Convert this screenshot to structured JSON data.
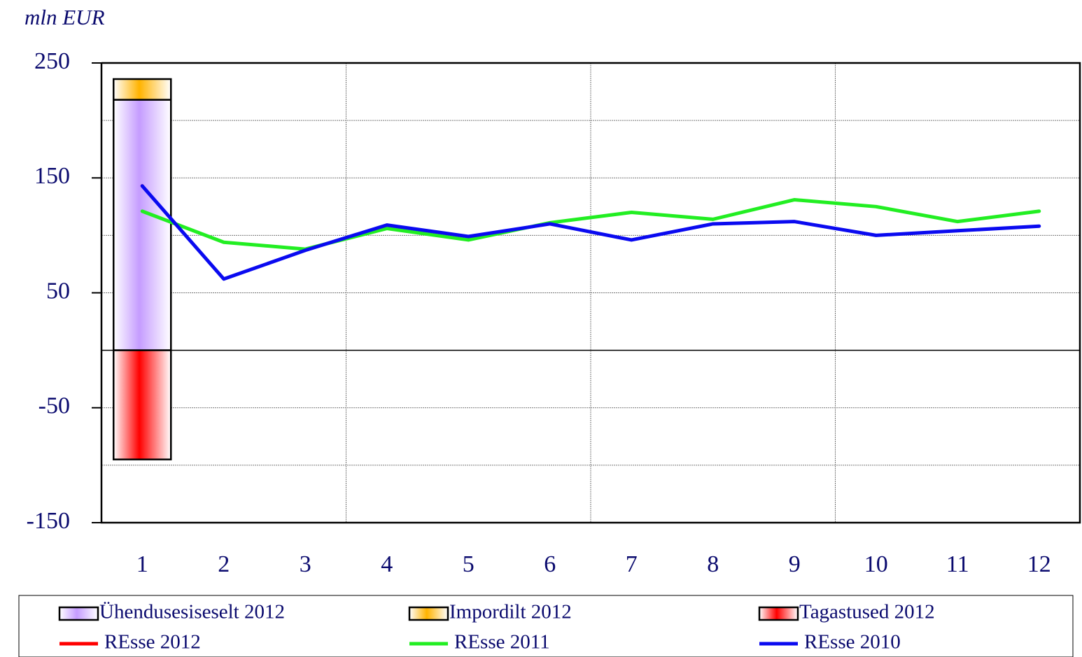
{
  "chart_data": {
    "type": "combo",
    "title": "mln EUR",
    "categories": [
      "1",
      "2",
      "3",
      "4",
      "5",
      "6",
      "7",
      "8",
      "9",
      "10",
      "11",
      "12"
    ],
    "ylim": [
      -150,
      250
    ],
    "yticks": [
      -150,
      -50,
      50,
      150,
      250
    ],
    "grid_step": 50,
    "grid": true,
    "series": [
      {
        "name": "Ühendusesiseselt 2012",
        "type": "bar",
        "color": "#c59cff",
        "values": [
          218,
          null,
          null,
          null,
          null,
          null,
          null,
          null,
          null,
          null,
          null,
          null
        ]
      },
      {
        "name": "Impordilt 2012",
        "type": "bar",
        "color": "#ffb300",
        "values": [
          18,
          null,
          null,
          null,
          null,
          null,
          null,
          null,
          null,
          null,
          null,
          null
        ]
      },
      {
        "name": "Tagastused 2012",
        "type": "bar",
        "color": "#ff0000",
        "values": [
          -95,
          null,
          null,
          null,
          null,
          null,
          null,
          null,
          null,
          null,
          null,
          null
        ]
      },
      {
        "name": "REsse 2012",
        "type": "line",
        "color": "#ff0000",
        "values": [
          143,
          null,
          null,
          null,
          null,
          null,
          null,
          null,
          null,
          null,
          null,
          null
        ]
      },
      {
        "name": "REsse 2011",
        "type": "line",
        "color": "#22ee22",
        "values": [
          121,
          94,
          88,
          106,
          96,
          111,
          120,
          114,
          131,
          125,
          112,
          121
        ]
      },
      {
        "name": "REsse 2010",
        "type": "line",
        "color": "#0a0af0",
        "values": [
          143,
          62,
          87,
          109,
          99,
          110,
          96,
          110,
          112,
          100,
          104,
          108
        ]
      }
    ]
  }
}
